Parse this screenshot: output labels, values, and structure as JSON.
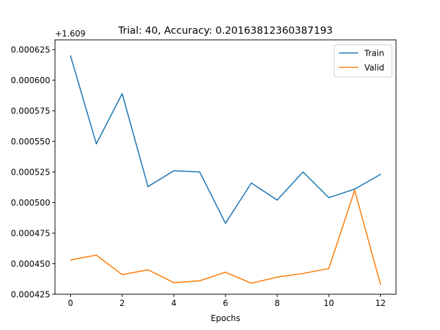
{
  "chart_data": {
    "type": "line",
    "title": "Trial: 40, Accuracy: 0.20163812360387193",
    "xlabel": "Epochs",
    "ylabel": "",
    "offset_text": "+1.609",
    "x": [
      0,
      1,
      2,
      3,
      4,
      5,
      6,
      7,
      8,
      9,
      10,
      11,
      12
    ],
    "xlim": [
      -0.6,
      12.6
    ],
    "ylim": [
      0.000425,
      0.000633
    ],
    "x_ticks": [
      0,
      2,
      4,
      6,
      8,
      10,
      12
    ],
    "x_tick_labels": [
      "0",
      "2",
      "4",
      "6",
      "8",
      "10",
      "12"
    ],
    "y_ticks": [
      0.000425,
      0.00045,
      0.000475,
      0.0005,
      0.000525,
      0.00055,
      0.000575,
      0.0006,
      0.000625
    ],
    "y_tick_labels": [
      "0.000425",
      "0.000450",
      "0.000475",
      "0.000500",
      "0.000525",
      "0.000550",
      "0.000575",
      "0.000600",
      "0.000625"
    ],
    "grid": false,
    "legend_position": "top-right",
    "series": [
      {
        "name": "Train",
        "color": "#1f77b4",
        "values": [
          0.00062,
          0.000548,
          0.000589,
          0.000513,
          0.000526,
          0.000525,
          0.000483,
          0.000516,
          0.000502,
          0.000525,
          0.000504,
          0.000511,
          0.000523
        ]
      },
      {
        "name": "Valid",
        "color": "#ff7f0e",
        "values": [
          0.000453,
          0.000457,
          0.000441,
          0.000445,
          0.0004345,
          0.000436,
          0.000443,
          0.000434,
          0.000439,
          0.000442,
          0.000446,
          0.00051,
          0.000433
        ]
      }
    ]
  }
}
